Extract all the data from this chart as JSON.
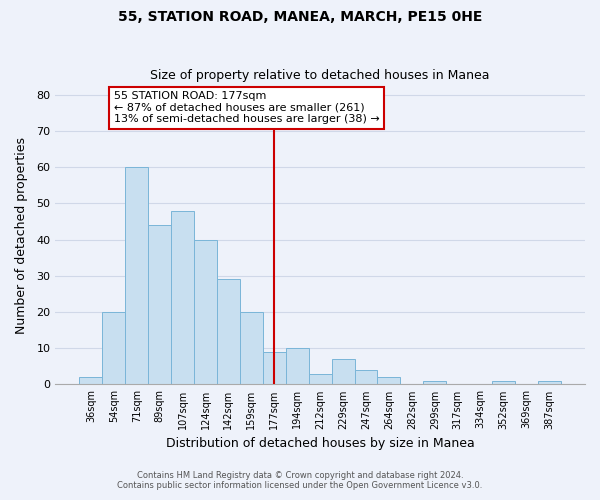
{
  "title": "55, STATION ROAD, MANEA, MARCH, PE15 0HE",
  "subtitle": "Size of property relative to detached houses in Manea",
  "xlabel": "Distribution of detached houses by size in Manea",
  "ylabel": "Number of detached properties",
  "bar_color": "#c8dff0",
  "bar_edge_color": "#7ab5d8",
  "background_color": "#eef2fa",
  "grid_color": "#d0d8e8",
  "bin_labels": [
    "36sqm",
    "54sqm",
    "71sqm",
    "89sqm",
    "107sqm",
    "124sqm",
    "142sqm",
    "159sqm",
    "177sqm",
    "194sqm",
    "212sqm",
    "229sqm",
    "247sqm",
    "264sqm",
    "282sqm",
    "299sqm",
    "317sqm",
    "334sqm",
    "352sqm",
    "369sqm",
    "387sqm"
  ],
  "bar_values": [
    2,
    20,
    60,
    44,
    48,
    40,
    29,
    20,
    9,
    10,
    3,
    7,
    4,
    2,
    0,
    1,
    0,
    0,
    1,
    0,
    1
  ],
  "vline_x": 8,
  "vline_color": "#cc0000",
  "annotation_title": "55 STATION ROAD: 177sqm",
  "annotation_line1": "← 87% of detached houses are smaller (261)",
  "annotation_line2": "13% of semi-detached houses are larger (38) →",
  "annotation_box_edge": "#cc0000",
  "ylim": [
    0,
    82
  ],
  "yticks": [
    0,
    10,
    20,
    30,
    40,
    50,
    60,
    70,
    80
  ],
  "footer1": "Contains HM Land Registry data © Crown copyright and database right 2024.",
  "footer2": "Contains public sector information licensed under the Open Government Licence v3.0."
}
